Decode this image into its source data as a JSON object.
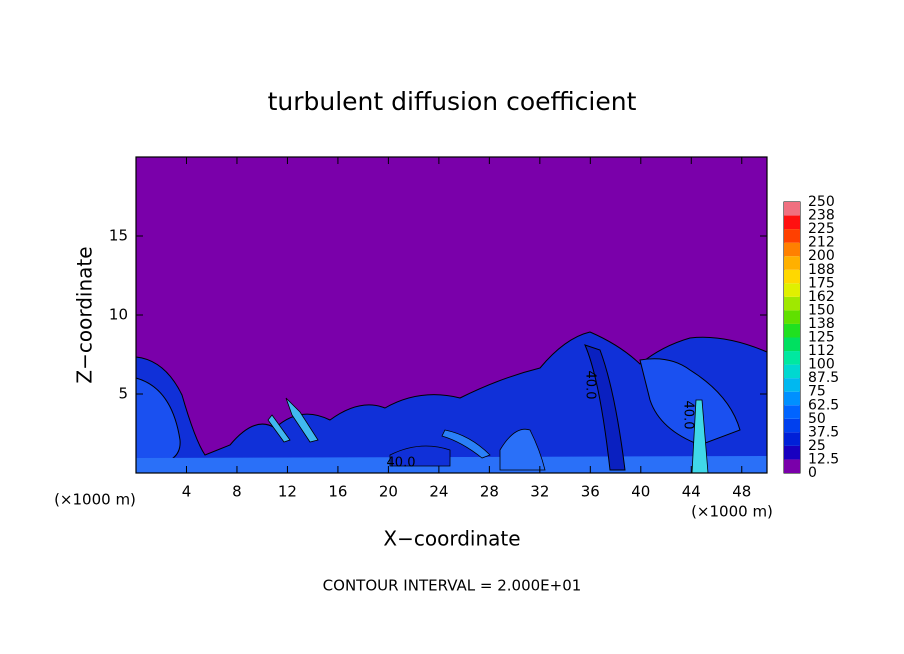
{
  "chart_data": {
    "type": "contour",
    "title": "turbulent diffusion coefficient",
    "xlabel": "X−coordinate",
    "ylabel": "Z−coordinate",
    "x_unit": "(×1000 m)",
    "y_unit": "(×1000 m)",
    "footer": "CONTOUR INTERVAL = 2.000E+01",
    "xlim": [
      0,
      50
    ],
    "xticks": [
      4,
      8,
      12,
      16,
      20,
      24,
      28,
      32,
      36,
      40,
      44,
      48
    ],
    "ylim": [
      0,
      20
    ],
    "yticks": [
      5,
      10,
      15
    ],
    "annotations": [
      "40.0",
      "40.0",
      "40.0"
    ],
    "background_color": "#7a00aa",
    "colorbar": {
      "levels": [
        0,
        12.5,
        25,
        37.5,
        50,
        62.5,
        75,
        87.5,
        100,
        {
          "value": 112.5,
          "label": "112"
        },
        125,
        {
          "value": 137.5,
          "label": "138"
        },
        150,
        {
          "value": 162.5,
          "label": "162"
        },
        175,
        {
          "value": 187.5,
          "label": "188"
        },
        200,
        {
          "value": 212.5,
          "label": "212"
        },
        225,
        {
          "value": 237.5,
          "label": "238"
        },
        250
      ],
      "colors": [
        "#7a00aa",
        "#1800c0",
        "#0020d8",
        "#0040ee",
        "#0064ff",
        "#0090ff",
        "#00b8f0",
        "#00d8d0",
        "#00e8a0",
        "#00e060",
        "#20e020",
        "#60e000",
        "#a0e800",
        "#e0f000",
        "#ffd800",
        "#ffb000",
        "#ff8000",
        "#ff4000",
        "#ff1010",
        "#f07080"
      ]
    }
  }
}
